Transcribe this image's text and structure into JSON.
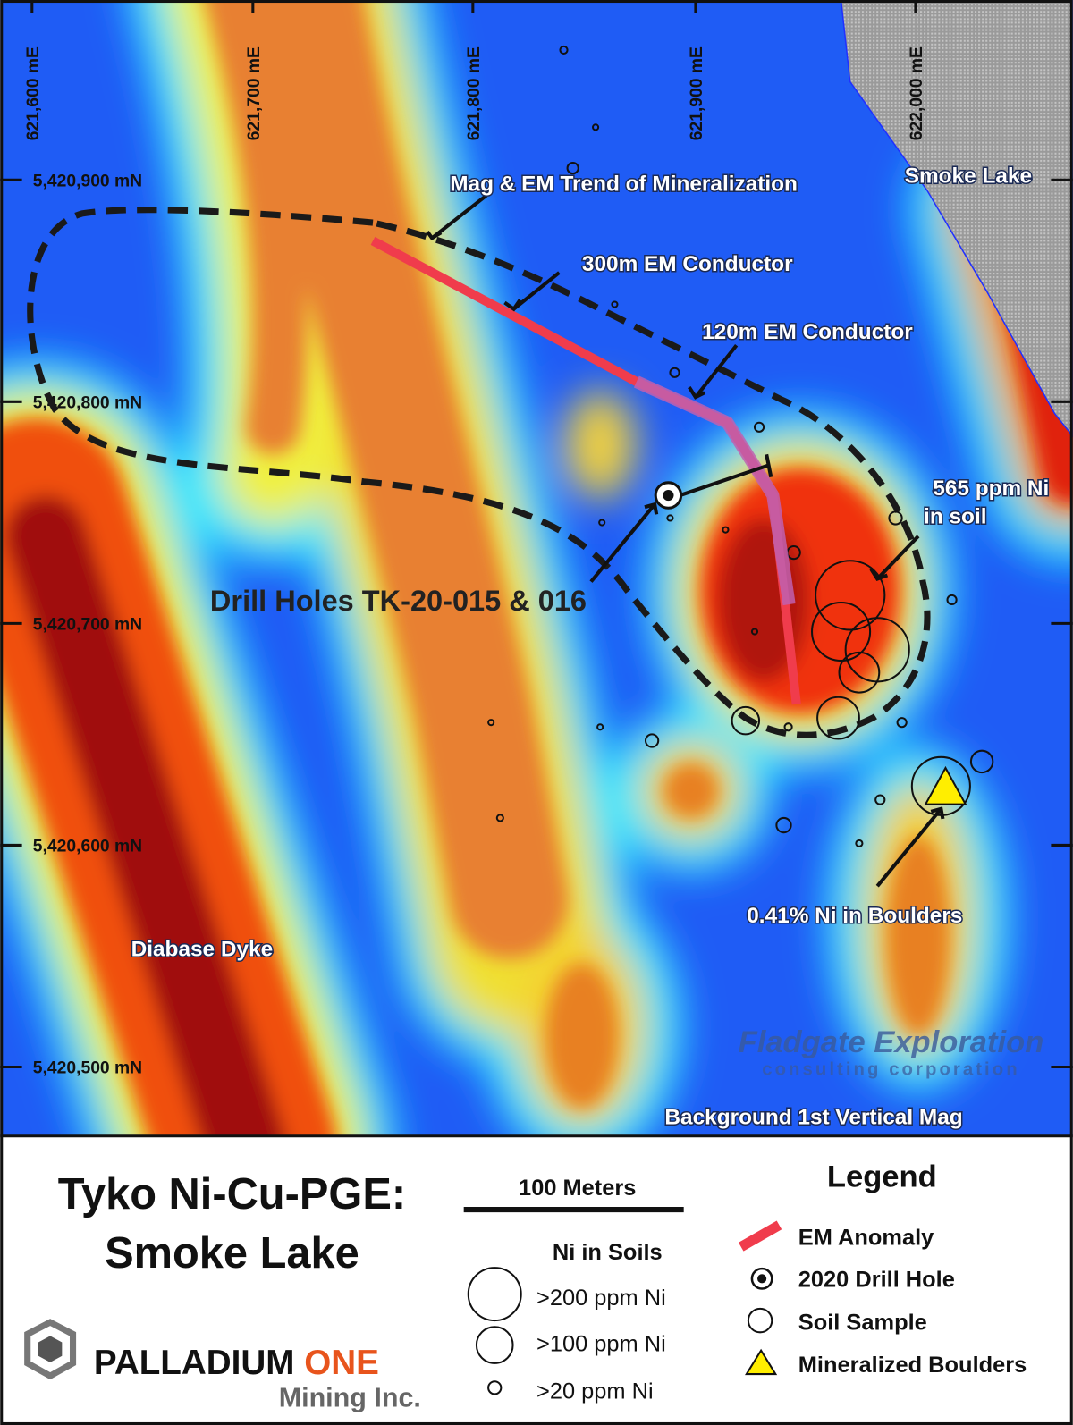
{
  "map": {
    "eastings": [
      "621,600 mE",
      "621,700 mE",
      "621,800 mE",
      "621,900 mE",
      "622,000 mE"
    ],
    "northings": [
      "5,420,900 mN",
      "5,420,800 mN",
      "5,420,700 mN",
      "5,420,600 mN",
      "5,420,500 mN"
    ],
    "labels": {
      "lake": "Smoke Lake",
      "trend": "Mag & EM Trend of Mineralization",
      "em300": "300m EM Conductor",
      "em120": "120m EM Conductor",
      "soil": [
        "565 ppm Ni",
        "in soil"
      ],
      "drill": "Drill Holes TK-20-015 & 016",
      "boulders": "0.41% Ni in Boulders",
      "dyke": "Diabase Dyke",
      "background": "Background 1st Vertical Mag"
    },
    "watermark": [
      "Fladgate Exploration",
      "consulting corporation"
    ]
  },
  "panel": {
    "title": [
      "Tyko Ni-Cu-PGE:",
      "Smoke Lake"
    ],
    "scale": "100 Meters",
    "soils": {
      "title": "Ni in Soils",
      "items": [
        ">200 ppm Ni",
        ">100 ppm Ni",
        ">20 ppm Ni"
      ]
    },
    "legend": {
      "title": "Legend",
      "items": [
        "EM Anomaly",
        "2020 Drill Hole",
        "Soil Sample",
        "Mineralized Boulders"
      ]
    },
    "logo": {
      "name": "PALLADIUM",
      "accent": "ONE",
      "sub": "Mining Inc."
    }
  }
}
